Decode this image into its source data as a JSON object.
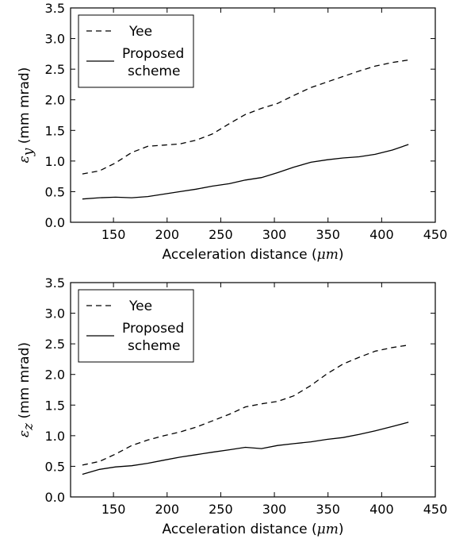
{
  "chart_data": [
    {
      "type": "line",
      "xlabel_prefix": "Acceleration distance (",
      "xlabel_unit": "μm",
      "xlabel_suffix": ")",
      "ylabel_symbol": "ε",
      "ylabel_sub": "y",
      "ylabel_text": " (mm mrad)",
      "xlim": [
        110,
        450
      ],
      "ylim": [
        0.0,
        3.5
      ],
      "xticks": [
        "150",
        "200",
        "250",
        "300",
        "350",
        "400",
        "450"
      ],
      "yticks": [
        "0.0",
        "0.5",
        "1.0",
        "1.5",
        "2.0",
        "2.5",
        "3.0",
        "3.5"
      ],
      "legend_position": "top-left",
      "series": [
        {
          "name": "Yee",
          "style": "dashed",
          "x": [
            121,
            137,
            152,
            167,
            182,
            197,
            212,
            227,
            242,
            258,
            273,
            288,
            303,
            318,
            334,
            349,
            364,
            379,
            394,
            410,
            425
          ],
          "y": [
            0.79,
            0.84,
            0.97,
            1.14,
            1.24,
            1.26,
            1.28,
            1.34,
            1.44,
            1.61,
            1.76,
            1.86,
            1.94,
            2.07,
            2.2,
            2.29,
            2.38,
            2.47,
            2.55,
            2.61,
            2.65
          ]
        },
        {
          "name": "Proposed\nscheme",
          "label_lines": [
            "Proposed",
            "scheme"
          ],
          "style": "solid",
          "x": [
            121,
            137,
            152,
            167,
            182,
            197,
            212,
            227,
            242,
            258,
            273,
            288,
            303,
            318,
            334,
            349,
            364,
            379,
            394,
            410,
            425
          ],
          "y": [
            0.38,
            0.4,
            0.41,
            0.4,
            0.42,
            0.46,
            0.5,
            0.54,
            0.59,
            0.63,
            0.69,
            0.73,
            0.81,
            0.9,
            0.98,
            1.02,
            1.05,
            1.07,
            1.11,
            1.18,
            1.27
          ]
        }
      ]
    },
    {
      "type": "line",
      "xlabel_prefix": "Acceleration distance (",
      "xlabel_unit": "μm",
      "xlabel_suffix": ")",
      "ylabel_symbol": "ε",
      "ylabel_sub": "z",
      "ylabel_text": " (mm mrad)",
      "xlim": [
        110,
        450
      ],
      "ylim": [
        0.0,
        3.5
      ],
      "xticks": [
        "150",
        "200",
        "250",
        "300",
        "350",
        "400",
        "450"
      ],
      "yticks": [
        "0.0",
        "0.5",
        "1.0",
        "1.5",
        "2.0",
        "2.5",
        "3.0",
        "3.5"
      ],
      "legend_position": "top-left",
      "series": [
        {
          "name": "Yee",
          "style": "dashed",
          "x": [
            121,
            137,
            152,
            167,
            182,
            197,
            212,
            227,
            242,
            258,
            273,
            288,
            303,
            318,
            334,
            349,
            364,
            379,
            394,
            410,
            425
          ],
          "y": [
            0.52,
            0.58,
            0.7,
            0.84,
            0.93,
            1.0,
            1.06,
            1.14,
            1.24,
            1.35,
            1.47,
            1.52,
            1.56,
            1.65,
            1.82,
            2.01,
            2.17,
            2.28,
            2.38,
            2.44,
            2.48
          ]
        },
        {
          "name": "Proposed\nscheme",
          "label_lines": [
            "Proposed",
            "scheme"
          ],
          "style": "solid",
          "x": [
            121,
            137,
            152,
            167,
            182,
            197,
            212,
            227,
            242,
            258,
            273,
            288,
            303,
            318,
            334,
            349,
            364,
            379,
            394,
            410,
            425
          ],
          "y": [
            0.37,
            0.45,
            0.49,
            0.51,
            0.55,
            0.6,
            0.65,
            0.69,
            0.73,
            0.77,
            0.81,
            0.79,
            0.84,
            0.87,
            0.9,
            0.94,
            0.97,
            1.02,
            1.08,
            1.15,
            1.22
          ]
        }
      ]
    }
  ]
}
